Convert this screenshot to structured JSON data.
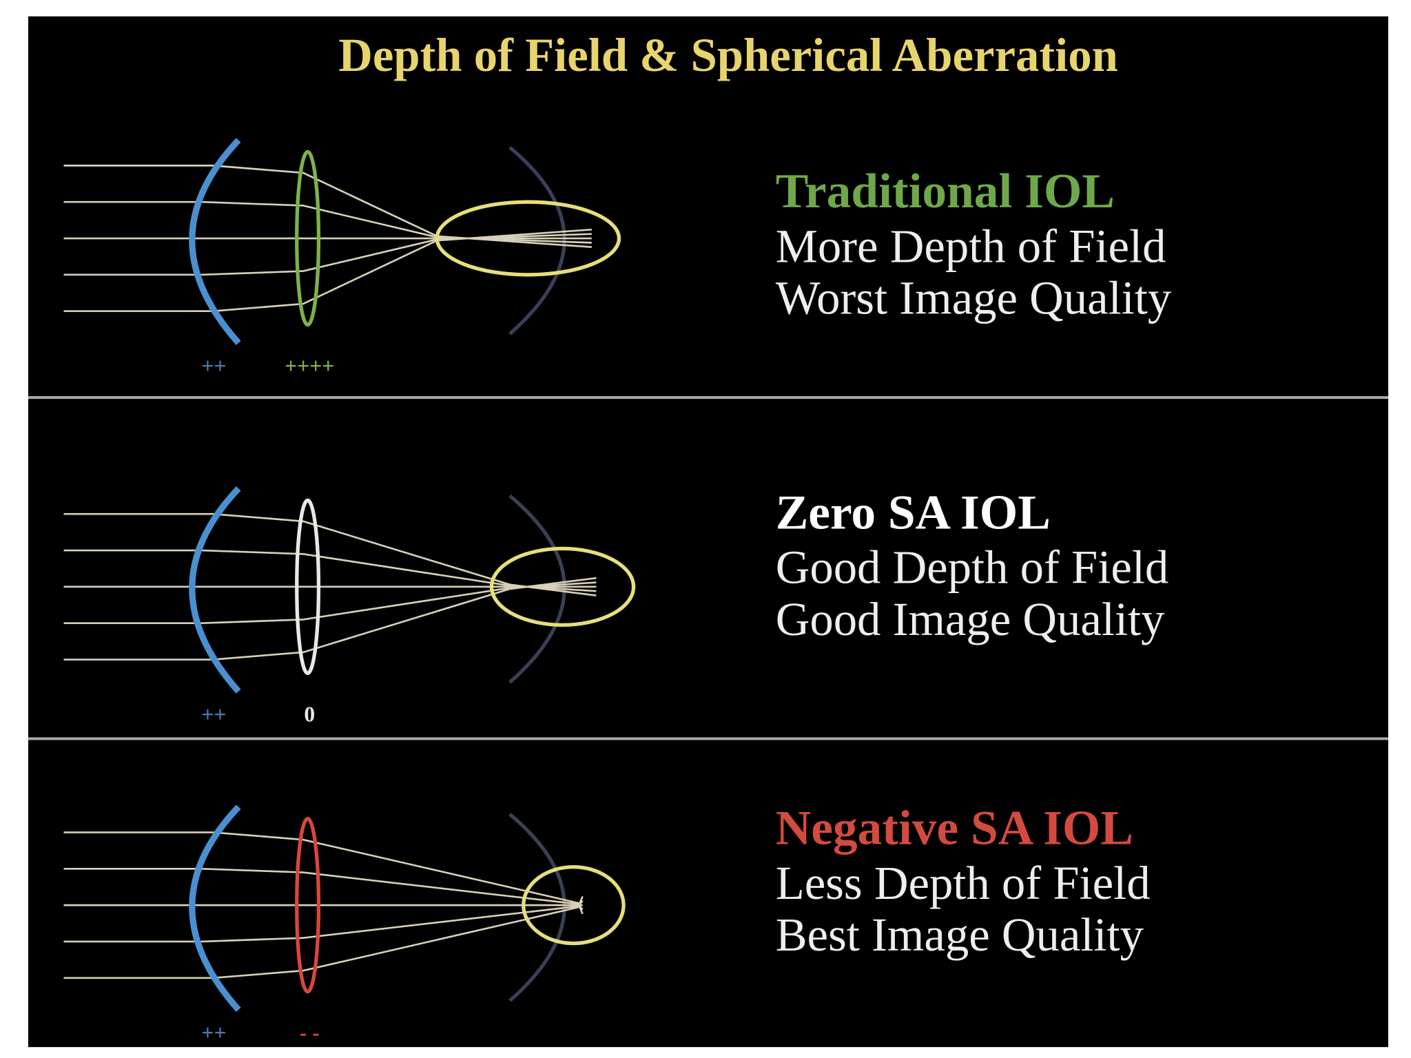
{
  "title": "Depth of Field & Spherical Aberration",
  "panels": [
    {
      "label": "Traditional IOL",
      "line1": "More Depth of Field",
      "line2": "Worst Image Quality",
      "cornea_sign": "++",
      "lens_sign": "++++"
    },
    {
      "label": "Zero SA IOL",
      "line1": "Good Depth of Field",
      "line2": "Good Image Quality",
      "cornea_sign": "++",
      "lens_sign": "0"
    },
    {
      "label": "Negative SA IOL",
      "line1": "Less Depth of Field",
      "line2": "Best Image Quality",
      "cornea_sign": "++",
      "lens_sign": "- -"
    }
  ]
}
